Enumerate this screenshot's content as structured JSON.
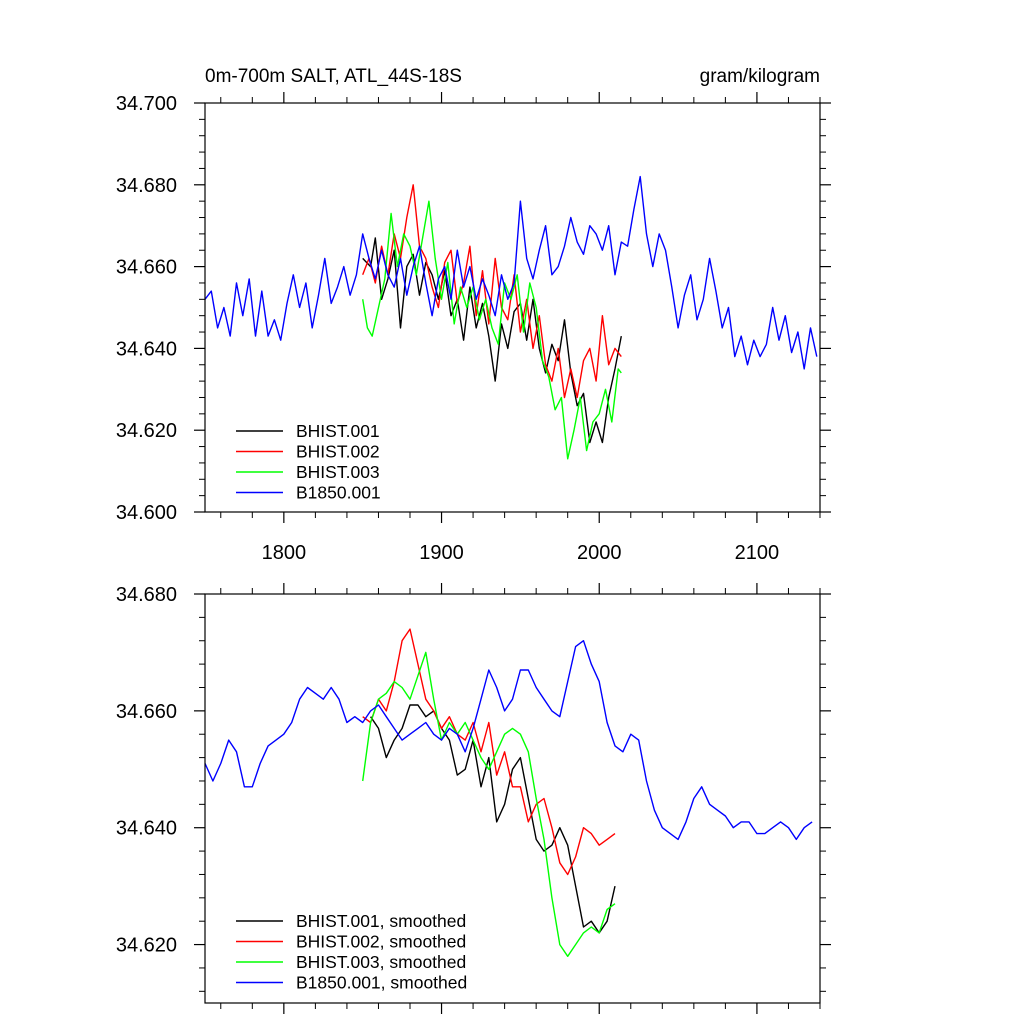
{
  "chart_data": [
    {
      "type": "line",
      "title": "0m-700m SALT, ATL_44S-18S",
      "units": "gram/kilogram",
      "xlabel": "",
      "ylabel": "",
      "xlim": [
        1750,
        2140
      ],
      "ylim": [
        34.6,
        34.7
      ],
      "x_ticks": [
        1800,
        1900,
        2000,
        2100
      ],
      "x_tick_labels": [
        "1800",
        "1900",
        "2000",
        "2100"
      ],
      "y_ticks": [
        34.6,
        34.62,
        34.64,
        34.66,
        34.68,
        34.7
      ],
      "y_tick_labels": [
        "34.600",
        "34.620",
        "34.640",
        "34.660",
        "34.680",
        "34.700"
      ],
      "grid": false,
      "legend_position": "bottom-left",
      "series": [
        {
          "name": "BHIST.001",
          "color": "#000000",
          "x": [
            1850,
            1855,
            1858,
            1862,
            1866,
            1870,
            1874,
            1878,
            1882,
            1886,
            1890,
            1894,
            1898,
            1902,
            1906,
            1910,
            1914,
            1918,
            1922,
            1926,
            1930,
            1934,
            1938,
            1942,
            1946,
            1950,
            1954,
            1958,
            1962,
            1966,
            1970,
            1974,
            1978,
            1982,
            1986,
            1990,
            1994,
            1998,
            2002,
            2006,
            2010,
            2014
          ],
          "y": [
            34.662,
            34.66,
            34.667,
            34.652,
            34.657,
            34.664,
            34.645,
            34.66,
            34.663,
            34.653,
            34.661,
            34.658,
            34.652,
            34.659,
            34.648,
            34.652,
            34.642,
            34.655,
            34.645,
            34.651,
            34.643,
            34.632,
            34.646,
            34.64,
            34.649,
            34.651,
            34.642,
            34.652,
            34.64,
            34.634,
            34.641,
            34.637,
            34.647,
            34.634,
            34.626,
            34.629,
            34.617,
            34.622,
            34.617,
            34.628,
            34.635,
            34.643
          ]
        },
        {
          "name": "BHIST.002",
          "color": "#ff0000",
          "x": [
            1850,
            1854,
            1858,
            1862,
            1866,
            1870,
            1874,
            1878,
            1882,
            1886,
            1890,
            1894,
            1898,
            1902,
            1906,
            1910,
            1914,
            1918,
            1922,
            1926,
            1930,
            1934,
            1938,
            1942,
            1946,
            1950,
            1954,
            1958,
            1962,
            1966,
            1970,
            1974,
            1978,
            1982,
            1986,
            1990,
            1994,
            1998,
            2002,
            2006,
            2010,
            2014
          ],
          "y": [
            34.658,
            34.662,
            34.656,
            34.665,
            34.658,
            34.668,
            34.662,
            34.672,
            34.68,
            34.665,
            34.662,
            34.655,
            34.65,
            34.661,
            34.664,
            34.651,
            34.656,
            34.665,
            34.648,
            34.659,
            34.646,
            34.662,
            34.65,
            34.647,
            34.658,
            34.644,
            34.652,
            34.64,
            34.648,
            34.636,
            34.632,
            34.64,
            34.628,
            34.635,
            34.628,
            34.637,
            34.64,
            34.632,
            34.648,
            34.636,
            34.64,
            34.638
          ]
        },
        {
          "name": "BHIST.003",
          "color": "#00ff00",
          "x": [
            1850,
            1853,
            1856,
            1860,
            1864,
            1868,
            1872,
            1876,
            1880,
            1884,
            1888,
            1892,
            1896,
            1900,
            1904,
            1908,
            1912,
            1916,
            1920,
            1924,
            1928,
            1932,
            1936,
            1940,
            1944,
            1948,
            1952,
            1956,
            1960,
            1964,
            1968,
            1972,
            1976,
            1980,
            1984,
            1988,
            1992,
            1996,
            2000,
            2004,
            2008,
            2012,
            2014
          ],
          "y": [
            34.652,
            34.645,
            34.643,
            34.65,
            34.657,
            34.673,
            34.66,
            34.668,
            34.665,
            34.658,
            34.667,
            34.676,
            34.662,
            34.652,
            34.661,
            34.646,
            34.655,
            34.65,
            34.655,
            34.647,
            34.652,
            34.645,
            34.641,
            34.656,
            34.652,
            34.658,
            34.644,
            34.656,
            34.65,
            34.637,
            34.633,
            34.625,
            34.628,
            34.613,
            34.62,
            34.628,
            34.615,
            34.622,
            34.624,
            34.63,
            34.622,
            34.635,
            34.634
          ]
        },
        {
          "name": "B1850.001",
          "color": "#0000ff",
          "x": [
            1750,
            1754,
            1758,
            1762,
            1766,
            1770,
            1774,
            1778,
            1782,
            1786,
            1790,
            1794,
            1798,
            1802,
            1806,
            1810,
            1814,
            1818,
            1822,
            1826,
            1830,
            1834,
            1838,
            1842,
            1846,
            1850,
            1854,
            1858,
            1862,
            1866,
            1870,
            1874,
            1878,
            1882,
            1886,
            1890,
            1894,
            1898,
            1902,
            1906,
            1910,
            1914,
            1918,
            1922,
            1926,
            1930,
            1934,
            1938,
            1942,
            1946,
            1950,
            1954,
            1958,
            1962,
            1966,
            1970,
            1974,
            1978,
            1982,
            1986,
            1990,
            1994,
            1998,
            2002,
            2006,
            2010,
            2014,
            2018,
            2022,
            2026,
            2030,
            2034,
            2038,
            2042,
            2046,
            2050,
            2054,
            2058,
            2062,
            2066,
            2070,
            2074,
            2078,
            2082,
            2086,
            2090,
            2094,
            2098,
            2102,
            2106,
            2110,
            2114,
            2118,
            2122,
            2126,
            2130,
            2134,
            2138
          ],
          "y": [
            34.652,
            34.654,
            34.645,
            34.65,
            34.643,
            34.656,
            34.648,
            34.657,
            34.643,
            34.654,
            34.643,
            34.647,
            34.642,
            34.651,
            34.658,
            34.65,
            34.656,
            34.645,
            34.653,
            34.662,
            34.651,
            34.655,
            34.66,
            34.653,
            34.658,
            34.668,
            34.662,
            34.657,
            34.664,
            34.658,
            34.655,
            34.662,
            34.653,
            34.66,
            34.665,
            34.656,
            34.648,
            34.657,
            34.66,
            34.652,
            34.664,
            34.655,
            34.66,
            34.652,
            34.657,
            34.653,
            34.648,
            34.658,
            34.652,
            34.656,
            34.676,
            34.662,
            34.657,
            34.664,
            34.67,
            34.658,
            34.66,
            34.665,
            34.672,
            34.666,
            34.663,
            34.67,
            34.668,
            34.664,
            34.67,
            34.658,
            34.666,
            34.665,
            34.674,
            34.682,
            34.668,
            34.66,
            34.668,
            34.664,
            34.655,
            34.645,
            34.653,
            34.658,
            34.647,
            34.652,
            34.662,
            34.654,
            34.645,
            34.65,
            34.638,
            34.643,
            34.636,
            34.642,
            34.638,
            34.641,
            34.65,
            34.642,
            34.648,
            34.639,
            34.644,
            34.635,
            34.645,
            34.638
          ]
        }
      ]
    },
    {
      "type": "line",
      "title": "",
      "xlabel": "",
      "ylabel": "",
      "xlim": [
        1750,
        2140
      ],
      "ylim": [
        34.61,
        34.68
      ],
      "x_ticks": [
        1800,
        1900,
        2000,
        2100
      ],
      "x_tick_labels": [],
      "y_ticks": [
        34.62,
        34.64,
        34.66,
        34.68
      ],
      "y_tick_labels": [
        "34.620",
        "34.640",
        "34.660",
        "34.680"
      ],
      "grid": false,
      "legend_position": "bottom-left",
      "series": [
        {
          "name": "BHIST.001, smoothed",
          "color": "#000000",
          "x": [
            1855,
            1860,
            1865,
            1870,
            1875,
            1880,
            1885,
            1890,
            1895,
            1900,
            1905,
            1910,
            1915,
            1920,
            1925,
            1930,
            1935,
            1940,
            1945,
            1950,
            1955,
            1960,
            1965,
            1970,
            1975,
            1980,
            1985,
            1990,
            1995,
            2000,
            2005,
            2010
          ],
          "y": [
            34.659,
            34.657,
            34.652,
            34.655,
            34.657,
            34.661,
            34.661,
            34.659,
            34.66,
            34.657,
            34.655,
            34.649,
            34.65,
            34.655,
            34.647,
            34.652,
            34.641,
            34.644,
            34.65,
            34.652,
            34.645,
            34.638,
            34.636,
            34.637,
            34.64,
            34.637,
            34.63,
            34.623,
            34.624,
            34.622,
            34.624,
            34.63
          ]
        },
        {
          "name": "BHIST.002, smoothed",
          "color": "#ff0000",
          "x": [
            1850,
            1855,
            1860,
            1865,
            1870,
            1875,
            1880,
            1885,
            1890,
            1895,
            1900,
            1905,
            1910,
            1915,
            1920,
            1925,
            1930,
            1935,
            1940,
            1945,
            1950,
            1955,
            1960,
            1965,
            1970,
            1975,
            1980,
            1985,
            1990,
            1995,
            2000,
            2005,
            2010
          ],
          "y": [
            34.659,
            34.658,
            34.662,
            34.66,
            34.665,
            34.672,
            34.674,
            34.668,
            34.662,
            34.66,
            34.657,
            34.659,
            34.656,
            34.655,
            34.658,
            34.653,
            34.658,
            34.649,
            34.653,
            34.647,
            34.647,
            34.641,
            34.644,
            34.645,
            34.64,
            34.634,
            34.632,
            34.635,
            34.64,
            34.639,
            34.637,
            34.638,
            34.639
          ]
        },
        {
          "name": "BHIST.003, smoothed",
          "color": "#00ff00",
          "x": [
            1850,
            1855,
            1860,
            1865,
            1870,
            1875,
            1880,
            1885,
            1890,
            1895,
            1900,
            1905,
            1910,
            1915,
            1920,
            1925,
            1930,
            1935,
            1940,
            1945,
            1950,
            1955,
            1960,
            1965,
            1970,
            1975,
            1980,
            1985,
            1990,
            1995,
            2000,
            2005,
            2010
          ],
          "y": [
            34.648,
            34.658,
            34.662,
            34.663,
            34.665,
            34.664,
            34.662,
            34.666,
            34.67,
            34.662,
            34.655,
            34.658,
            34.656,
            34.658,
            34.655,
            34.652,
            34.65,
            34.653,
            34.656,
            34.657,
            34.656,
            34.653,
            34.645,
            34.638,
            34.628,
            34.62,
            34.618,
            34.62,
            34.622,
            34.623,
            34.622,
            34.626,
            34.627
          ]
        },
        {
          "name": "B1850.001, smoothed",
          "color": "#0000ff",
          "x": [
            1750,
            1755,
            1760,
            1765,
            1770,
            1775,
            1780,
            1785,
            1790,
            1795,
            1800,
            1805,
            1810,
            1815,
            1820,
            1825,
            1830,
            1835,
            1840,
            1845,
            1850,
            1855,
            1860,
            1865,
            1870,
            1875,
            1880,
            1885,
            1890,
            1895,
            1900,
            1905,
            1910,
            1915,
            1920,
            1925,
            1930,
            1935,
            1940,
            1945,
            1950,
            1955,
            1960,
            1965,
            1970,
            1975,
            1980,
            1985,
            1990,
            1995,
            2000,
            2005,
            2010,
            2015,
            2020,
            2025,
            2030,
            2035,
            2040,
            2045,
            2050,
            2055,
            2060,
            2065,
            2070,
            2075,
            2080,
            2085,
            2090,
            2095,
            2100,
            2105,
            2110,
            2115,
            2120,
            2125,
            2130,
            2135
          ],
          "y": [
            34.651,
            34.648,
            34.651,
            34.655,
            34.653,
            34.647,
            34.647,
            34.651,
            34.654,
            34.655,
            34.656,
            34.658,
            34.662,
            34.664,
            34.663,
            34.662,
            34.664,
            34.662,
            34.658,
            34.659,
            34.658,
            34.66,
            34.661,
            34.659,
            34.657,
            34.655,
            34.656,
            34.657,
            34.658,
            34.656,
            34.655,
            34.657,
            34.656,
            34.653,
            34.657,
            34.662,
            34.667,
            34.664,
            34.66,
            34.662,
            34.667,
            34.667,
            34.664,
            34.662,
            34.66,
            34.659,
            34.665,
            34.671,
            34.672,
            34.668,
            34.665,
            34.658,
            34.654,
            34.653,
            34.656,
            34.655,
            34.648,
            34.643,
            34.64,
            34.639,
            34.638,
            34.641,
            34.645,
            34.647,
            34.644,
            34.643,
            34.642,
            34.64,
            34.641,
            34.641,
            34.639,
            34.639,
            34.64,
            34.641,
            34.64,
            34.638,
            34.64,
            34.641
          ]
        }
      ]
    }
  ]
}
